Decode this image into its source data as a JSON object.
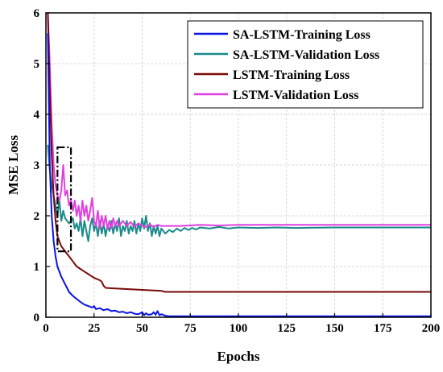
{
  "chart_data": {
    "type": "line",
    "xlabel": "Epochs",
    "ylabel": "MSE Loss",
    "xlim": [
      0,
      200
    ],
    "ylim": [
      0,
      6
    ],
    "xticks": [
      0,
      25,
      50,
      75,
      100,
      125,
      150,
      175,
      200
    ],
    "yticks": [
      0,
      1,
      2,
      3,
      4,
      5,
      6
    ],
    "grid": true,
    "legend_position": "top-right",
    "series": [
      {
        "name": "SA-LSTM-Training Loss",
        "color": "#0a14e6",
        "points": [
          [
            1,
            5.6
          ],
          [
            2,
            3.0
          ],
          [
            3,
            2.0
          ],
          [
            4,
            1.5
          ],
          [
            5,
            1.2
          ],
          [
            6,
            1.0
          ],
          [
            8,
            0.8
          ],
          [
            10,
            0.65
          ],
          [
            12,
            0.5
          ],
          [
            14,
            0.42
          ],
          [
            16,
            0.36
          ],
          [
            18,
            0.3
          ],
          [
            20,
            0.25
          ],
          [
            22,
            0.22
          ],
          [
            24,
            0.19
          ],
          [
            25,
            0.22
          ],
          [
            26,
            0.16
          ],
          [
            28,
            0.18
          ],
          [
            30,
            0.14
          ],
          [
            32,
            0.16
          ],
          [
            34,
            0.12
          ],
          [
            36,
            0.13
          ],
          [
            38,
            0.1
          ],
          [
            40,
            0.11
          ],
          [
            42,
            0.08
          ],
          [
            44,
            0.1
          ],
          [
            46,
            0.07
          ],
          [
            48,
            0.06
          ],
          [
            50,
            0.1
          ],
          [
            51,
            0.04
          ],
          [
            52,
            0.08
          ],
          [
            53,
            0.05
          ],
          [
            55,
            0.06
          ],
          [
            56,
            0.1
          ],
          [
            57,
            0.05
          ],
          [
            58,
            0.12
          ],
          [
            59,
            0.04
          ],
          [
            60,
            0.06
          ],
          [
            62,
            0.03
          ],
          [
            64,
            0.02
          ],
          [
            70,
            0.02
          ],
          [
            80,
            0.02
          ],
          [
            100,
            0.02
          ],
          [
            125,
            0.02
          ],
          [
            150,
            0.02
          ],
          [
            175,
            0.02
          ],
          [
            200,
            0.02
          ]
        ]
      },
      {
        "name": "SA-LSTM-Validation Loss",
        "color": "#1a8a8a",
        "points": [
          [
            1,
            3.4
          ],
          [
            2,
            2.9
          ],
          [
            3,
            2.6
          ],
          [
            4,
            2.4
          ],
          [
            5,
            2.2
          ],
          [
            6,
            2.0
          ],
          [
            7,
            2.3
          ],
          [
            8,
            1.9
          ],
          [
            9,
            2.1
          ],
          [
            10,
            1.95
          ],
          [
            12,
            1.85
          ],
          [
            14,
            1.95
          ],
          [
            15,
            1.75
          ],
          [
            16,
            1.85
          ],
          [
            17,
            1.7
          ],
          [
            18,
            1.95
          ],
          [
            19,
            1.6
          ],
          [
            20,
            1.9
          ],
          [
            21,
            1.7
          ],
          [
            22,
            1.5
          ],
          [
            23,
            1.8
          ],
          [
            24,
            1.95
          ],
          [
            25,
            1.7
          ],
          [
            26,
            1.85
          ],
          [
            27,
            1.6
          ],
          [
            28,
            1.9
          ],
          [
            29,
            1.65
          ],
          [
            30,
            1.85
          ],
          [
            31,
            1.6
          ],
          [
            32,
            1.8
          ],
          [
            33,
            1.7
          ],
          [
            34,
            1.9
          ],
          [
            35,
            1.65
          ],
          [
            36,
            1.85
          ],
          [
            37,
            1.7
          ],
          [
            38,
            1.95
          ],
          [
            39,
            1.6
          ],
          [
            40,
            1.8
          ],
          [
            41,
            1.7
          ],
          [
            42,
            1.9
          ],
          [
            43,
            1.65
          ],
          [
            44,
            1.8
          ],
          [
            45,
            1.7
          ],
          [
            46,
            1.9
          ],
          [
            47,
            1.65
          ],
          [
            48,
            1.85
          ],
          [
            49,
            1.7
          ],
          [
            50,
            1.95
          ],
          [
            51,
            1.75
          ],
          [
            52,
            2.0
          ],
          [
            53,
            1.7
          ],
          [
            54,
            1.85
          ],
          [
            55,
            1.6
          ],
          [
            56,
            1.8
          ],
          [
            57,
            1.65
          ],
          [
            58,
            1.8
          ],
          [
            59,
            1.6
          ],
          [
            60,
            1.75
          ],
          [
            62,
            1.65
          ],
          [
            64,
            1.72
          ],
          [
            66,
            1.68
          ],
          [
            68,
            1.75
          ],
          [
            70,
            1.7
          ],
          [
            72,
            1.76
          ],
          [
            74,
            1.72
          ],
          [
            76,
            1.76
          ],
          [
            78,
            1.73
          ],
          [
            80,
            1.77
          ],
          [
            85,
            1.75
          ],
          [
            90,
            1.78
          ],
          [
            95,
            1.75
          ],
          [
            100,
            1.77
          ],
          [
            110,
            1.76
          ],
          [
            120,
            1.77
          ],
          [
            130,
            1.76
          ],
          [
            150,
            1.77
          ],
          [
            175,
            1.77
          ],
          [
            200,
            1.77
          ]
        ]
      },
      {
        "name": "LSTM-Training Loss",
        "color": "#7a0a0a",
        "points": [
          [
            1,
            6.0
          ],
          [
            2,
            4.5
          ],
          [
            3,
            3.2
          ],
          [
            4,
            2.4
          ],
          [
            5,
            1.9
          ],
          [
            6,
            1.6
          ],
          [
            7,
            1.5
          ],
          [
            8,
            1.4
          ],
          [
            10,
            1.3
          ],
          [
            12,
            1.2
          ],
          [
            14,
            1.1
          ],
          [
            16,
            1.0
          ],
          [
            18,
            0.95
          ],
          [
            20,
            0.9
          ],
          [
            22,
            0.85
          ],
          [
            24,
            0.8
          ],
          [
            26,
            0.76
          ],
          [
            28,
            0.73
          ],
          [
            29,
            0.7
          ],
          [
            30,
            0.62
          ],
          [
            31,
            0.58
          ],
          [
            35,
            0.57
          ],
          [
            40,
            0.56
          ],
          [
            45,
            0.55
          ],
          [
            50,
            0.54
          ],
          [
            55,
            0.53
          ],
          [
            60,
            0.52
          ],
          [
            62,
            0.5
          ],
          [
            70,
            0.5
          ],
          [
            80,
            0.5
          ],
          [
            100,
            0.5
          ],
          [
            125,
            0.5
          ],
          [
            150,
            0.5
          ],
          [
            175,
            0.5
          ],
          [
            200,
            0.5
          ]
        ]
      },
      {
        "name": "LSTM-Validation Loss",
        "color": "#e040e0",
        "points": [
          [
            1,
            6.0
          ],
          [
            2,
            5.0
          ],
          [
            3,
            3.8
          ],
          [
            4,
            3.0
          ],
          [
            5,
            2.6
          ],
          [
            6,
            2.4
          ],
          [
            7,
            2.3
          ],
          [
            8,
            2.5
          ],
          [
            9,
            3.0
          ],
          [
            10,
            2.4
          ],
          [
            11,
            2.5
          ],
          [
            12,
            2.2
          ],
          [
            13,
            2.3
          ],
          [
            14,
            2.1
          ],
          [
            15,
            2.3
          ],
          [
            16,
            2.0
          ],
          [
            17,
            2.2
          ],
          [
            18,
            1.9
          ],
          [
            19,
            2.3
          ],
          [
            20,
            2.0
          ],
          [
            21,
            2.2
          ],
          [
            22,
            1.9
          ],
          [
            23,
            2.1
          ],
          [
            24,
            2.35
          ],
          [
            25,
            1.9
          ],
          [
            26,
            1.8
          ],
          [
            27,
            2.1
          ],
          [
            28,
            1.75
          ],
          [
            29,
            2.0
          ],
          [
            30,
            1.8
          ],
          [
            31,
            2.0
          ],
          [
            32,
            1.75
          ],
          [
            33,
            1.9
          ],
          [
            34,
            1.75
          ],
          [
            35,
            1.95
          ],
          [
            36,
            1.8
          ],
          [
            37,
            1.9
          ],
          [
            38,
            1.8
          ],
          [
            40,
            1.9
          ],
          [
            42,
            1.8
          ],
          [
            44,
            1.88
          ],
          [
            46,
            1.78
          ],
          [
            48,
            1.85
          ],
          [
            50,
            1.8
          ],
          [
            52,
            1.78
          ],
          [
            54,
            1.83
          ],
          [
            56,
            1.78
          ],
          [
            58,
            1.82
          ],
          [
            60,
            1.8
          ],
          [
            65,
            1.8
          ],
          [
            70,
            1.8
          ],
          [
            80,
            1.82
          ],
          [
            90,
            1.81
          ],
          [
            100,
            1.82
          ],
          [
            125,
            1.82
          ],
          [
            150,
            1.82
          ],
          [
            175,
            1.82
          ],
          [
            200,
            1.82
          ]
        ]
      }
    ],
    "annotation": {
      "shape": "dash-dot rectangle",
      "x_range": [
        6,
        13
      ],
      "y_range": [
        1.3,
        3.35
      ],
      "color": "#000000"
    }
  }
}
